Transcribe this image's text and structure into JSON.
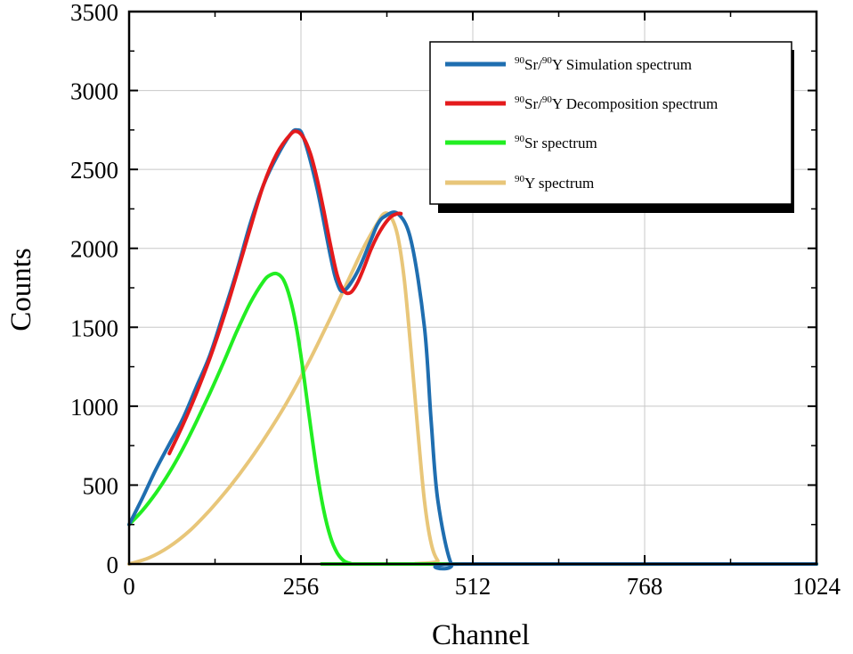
{
  "chart_data": {
    "type": "line",
    "title": "",
    "xlabel": "Channel",
    "ylabel": "Counts",
    "xlim": [
      0,
      1024
    ],
    "ylim": [
      0,
      3500
    ],
    "x_ticks": [
      0,
      256,
      512,
      768,
      1024
    ],
    "y_ticks": [
      0,
      500,
      1000,
      1500,
      2000,
      2500,
      3000,
      3500
    ],
    "x_tick_labels": [
      "0",
      "256",
      "512",
      "768",
      "1024"
    ],
    "y_tick_labels": [
      "0",
      "500",
      "1000",
      "1500",
      "2000",
      "2500",
      "3000",
      "3500"
    ],
    "grid": true,
    "legend_position": "top-right",
    "series": [
      {
        "name": "Simulation spectrum",
        "legend_prefix": "Sr/",
        "legend_sup1": "90",
        "legend_sup2": "90",
        "legend_mid": "Y ",
        "color": "#1f6eb0",
        "x": [
          0,
          20,
          40,
          60,
          80,
          100,
          120,
          140,
          160,
          180,
          200,
          220,
          240,
          250,
          260,
          280,
          300,
          310,
          320,
          340,
          360,
          370,
          380,
          400,
          420,
          440,
          450,
          460,
          480,
          500,
          1024
        ],
        "y": [
          250,
          420,
          600,
          760,
          920,
          1120,
          1320,
          1580,
          1850,
          2150,
          2400,
          2580,
          2720,
          2750,
          2700,
          2380,
          1950,
          1780,
          1730,
          1850,
          2050,
          2150,
          2200,
          2220,
          2050,
          1500,
          900,
          400,
          0,
          0,
          0
        ]
      },
      {
        "name": "Decomposition spectrum",
        "legend_prefix": "Sr/",
        "legend_sup1": "90",
        "legend_sup2": "90",
        "legend_mid": "Y ",
        "color": "#e41a1c",
        "x": [
          60,
          80,
          100,
          120,
          140,
          160,
          180,
          200,
          220,
          240,
          250,
          260,
          270,
          280,
          290,
          300,
          310,
          320,
          330,
          340,
          350,
          360,
          370,
          380,
          390,
          400,
          405
        ],
        "y": [
          700,
          880,
          1080,
          1300,
          1550,
          1830,
          2120,
          2400,
          2600,
          2720,
          2740,
          2700,
          2600,
          2440,
          2240,
          2020,
          1830,
          1730,
          1720,
          1780,
          1880,
          1990,
          2080,
          2150,
          2200,
          2220,
          2220
        ]
      },
      {
        "name": "Sr spectrum",
        "legend_sup1": "90",
        "color": "#22ee22",
        "x": [
          0,
          20,
          40,
          60,
          80,
          100,
          120,
          140,
          160,
          180,
          200,
          210,
          220,
          230,
          240,
          250,
          260,
          270,
          280,
          290,
          300,
          310,
          320,
          330,
          340,
          1024
        ],
        "y": [
          250,
          340,
          450,
          580,
          730,
          900,
          1080,
          1270,
          1470,
          1650,
          1790,
          1830,
          1840,
          1800,
          1680,
          1480,
          1200,
          880,
          580,
          340,
          170,
          70,
          20,
          3,
          0,
          0
        ]
      },
      {
        "name": "Y spectrum",
        "legend_sup1": "90",
        "color": "#e8c679",
        "x": [
          0,
          30,
          60,
          90,
          120,
          150,
          180,
          210,
          240,
          270,
          300,
          330,
          350,
          370,
          380,
          390,
          400,
          410,
          420,
          430,
          440,
          450,
          460,
          470,
          1024
        ],
        "y": [
          0,
          40,
          110,
          210,
          340,
          490,
          660,
          850,
          1060,
          1300,
          1560,
          1830,
          2010,
          2160,
          2220,
          2200,
          2080,
          1800,
          1350,
          850,
          400,
          130,
          20,
          0,
          0
        ]
      }
    ]
  }
}
